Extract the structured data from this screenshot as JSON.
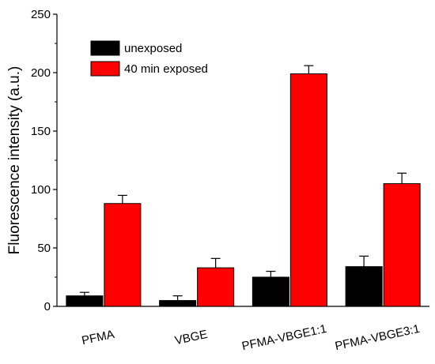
{
  "chart_data": {
    "type": "bar",
    "ylabel": "Fluorescence intensity (a.u.)",
    "xlabel": "",
    "ylim": [
      0,
      250
    ],
    "yticks": [
      0,
      50,
      100,
      150,
      200,
      250
    ],
    "categories": [
      "PFMA",
      "VBGE",
      "PFMA-VBGE1:1",
      "PFMA-VBGE3:1"
    ],
    "series": [
      {
        "name": "unexposed",
        "color": "#000000",
        "values": [
          9,
          5,
          25,
          34
        ],
        "errors": [
          3,
          4,
          5,
          9
        ]
      },
      {
        "name": "40 min exposed",
        "color": "#ff0000",
        "values": [
          88,
          33,
          199,
          105
        ],
        "errors": [
          7,
          8,
          7,
          9
        ]
      }
    ],
    "legend": "top-left",
    "grid": false
  }
}
